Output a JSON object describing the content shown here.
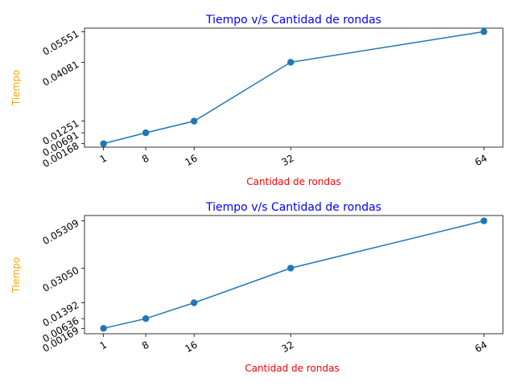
{
  "colors": {
    "title": "#0000ff",
    "xlabel": "#ff0000",
    "ylabel": "#ffa500",
    "line": "#1f77b4"
  },
  "chart_data": [
    {
      "type": "line",
      "title": "Tiempo v/s Cantidad de rondas",
      "xlabel": "Cantidad de rondas",
      "ylabel": "Tiempo",
      "x": [
        1,
        8,
        16,
        32,
        64
      ],
      "y": [
        0.00168,
        0.00691,
        0.01251,
        0.04081,
        0.05551
      ],
      "xticks": [
        "1",
        "8",
        "16",
        "32",
        "64"
      ],
      "yticks": [
        "0.00168",
        "0.00691",
        "0.01251",
        "0.04081",
        "0.05551"
      ],
      "xlim": [
        -2.15,
        67.15
      ],
      "ylim": [
        0.0,
        0.0572
      ],
      "marker": "circle",
      "grid": false,
      "tick_rotation": 30
    },
    {
      "type": "line",
      "title": "Tiempo v/s Cantidad de rondas",
      "xlabel": "Cantidad de rondas",
      "ylabel": "Tiempo",
      "x": [
        1,
        8,
        16,
        32,
        64
      ],
      "y": [
        0.00169,
        0.00636,
        0.01392,
        0.0305,
        0.05309
      ],
      "xticks": [
        "1",
        "8",
        "16",
        "32",
        "64"
      ],
      "yticks": [
        "0.00169",
        "0.00636",
        "0.01392",
        "0.03050",
        "0.05309"
      ],
      "xlim": [
        -2.15,
        67.15
      ],
      "ylim": [
        -0.000881,
        0.05565
      ],
      "marker": "circle",
      "grid": false,
      "tick_rotation": 30
    }
  ]
}
